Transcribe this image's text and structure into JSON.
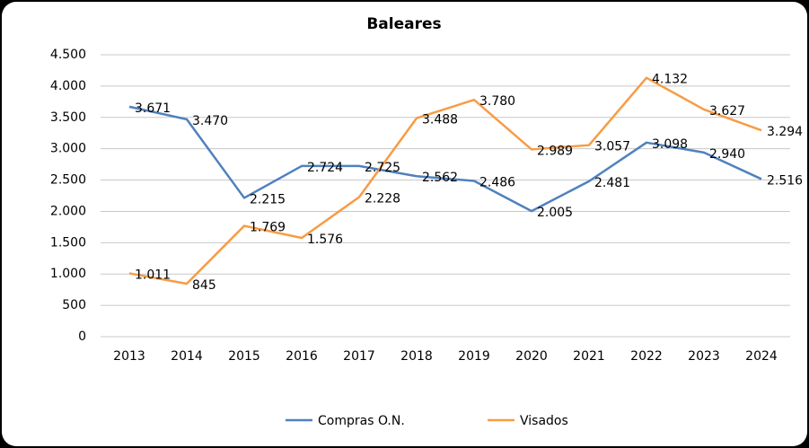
{
  "chart_data": {
    "type": "line",
    "title": "Baleares",
    "categories": [
      "2013",
      "2014",
      "2015",
      "2016",
      "2017",
      "2018",
      "2019",
      "2020",
      "2021",
      "2022",
      "2023",
      "2024"
    ],
    "series": [
      {
        "name": "Compras O.N.",
        "color": "#4f81bd",
        "values": [
          3671,
          3470,
          2215,
          2724,
          2725,
          2562,
          2486,
          2005,
          2481,
          3098,
          2940,
          2516
        ],
        "value_labels": [
          "3.671",
          "3.470",
          "2.215",
          "2.724",
          "2.725",
          "2.562",
          "2.486",
          "2.005",
          "2.481",
          "3.098",
          "2.940",
          "2.516"
        ]
      },
      {
        "name": "Visados",
        "color": "#f79c45",
        "values": [
          1011,
          845,
          1769,
          1576,
          2228,
          3488,
          3780,
          2989,
          3057,
          4132,
          3627,
          3294
        ],
        "value_labels": [
          "1.011",
          "845",
          "1.769",
          "1.576",
          "2.228",
          "3.488",
          "3.780",
          "2.989",
          "3.057",
          "4.132",
          "3.627",
          "3.294"
        ]
      }
    ],
    "ylim": [
      0,
      4500
    ],
    "yticks": [
      0,
      500,
      {
        "value": 1000,
        "label": "1.000"
      },
      {
        "value": 1500,
        "label": "1.500"
      },
      {
        "value": 2000,
        "label": "2.000"
      },
      {
        "value": 2500,
        "label": "2.500"
      },
      {
        "value": 3000,
        "label": "3.000"
      },
      {
        "value": 3500,
        "label": "3.500"
      },
      {
        "value": 4000,
        "label": "4.000"
      },
      {
        "value": 4500,
        "label": "4.500"
      }
    ],
    "grid": true,
    "legend": "bottom"
  }
}
